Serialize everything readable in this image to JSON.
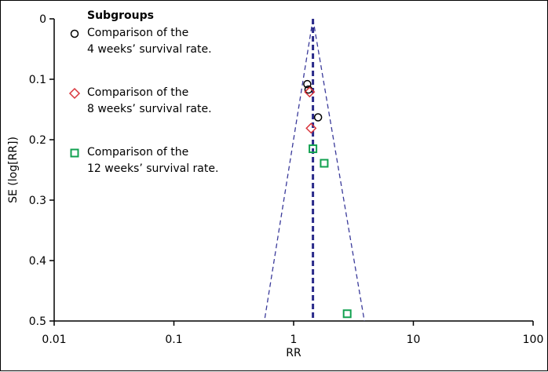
{
  "chart_data": {
    "type": "scatter",
    "subtype": "funnel-plot",
    "xlabel": "RR",
    "ylabel": "SE (log[RR])",
    "x_scale": "log",
    "x_ticks": [
      0.01,
      0.1,
      1,
      10,
      100
    ],
    "x_tick_labels": [
      "0.01",
      "0.1",
      "1",
      "10",
      "100"
    ],
    "xlim": [
      0.01,
      100
    ],
    "y_ticks": [
      0,
      0.1,
      0.2,
      0.3,
      0.4,
      0.5
    ],
    "y_tick_labels": [
      "0",
      "0.1",
      "0.2",
      "0.3",
      "0.4",
      "0.5"
    ],
    "ylim": [
      0,
      0.5
    ],
    "y_inverted": true,
    "grid": false,
    "legend_position": "top-left",
    "legend_title": "Subgroups",
    "pooled_rr": 1.45,
    "funnel_bottom_x": [
      0.57,
      3.9
    ],
    "series": [
      {
        "name": "Comparison of the\n4 weeks’ survival rate.",
        "name_lines": [
          "Comparison of the",
          "4 weeks’ survival rate."
        ],
        "marker": "circle",
        "color": "#000000",
        "points": [
          {
            "x": 1.3,
            "y": 0.108
          },
          {
            "x": 1.33,
            "y": 0.117
          },
          {
            "x": 1.6,
            "y": 0.163
          }
        ]
      },
      {
        "name": "Comparison of the\n8 weeks’ survival rate.",
        "name_lines": [
          "Comparison of the",
          "8 weeks’ survival rate."
        ],
        "marker": "diamond",
        "color": "#d9343b",
        "points": [
          {
            "x": 1.36,
            "y": 0.121
          },
          {
            "x": 1.4,
            "y": 0.181
          }
        ]
      },
      {
        "name": "Comparison of the\n12 weeks’ survival rate.",
        "name_lines": [
          "Comparison of the",
          "12 weeks’ survival rate."
        ],
        "marker": "square",
        "color": "#12a150",
        "points": [
          {
            "x": 1.45,
            "y": 0.215
          },
          {
            "x": 1.8,
            "y": 0.239
          },
          {
            "x": 2.8,
            "y": 0.488
          }
        ]
      }
    ],
    "colors": {
      "funnel_line": "#3a3a9a",
      "pooled_line": "#2a2a8a",
      "axis": "#000000"
    }
  }
}
